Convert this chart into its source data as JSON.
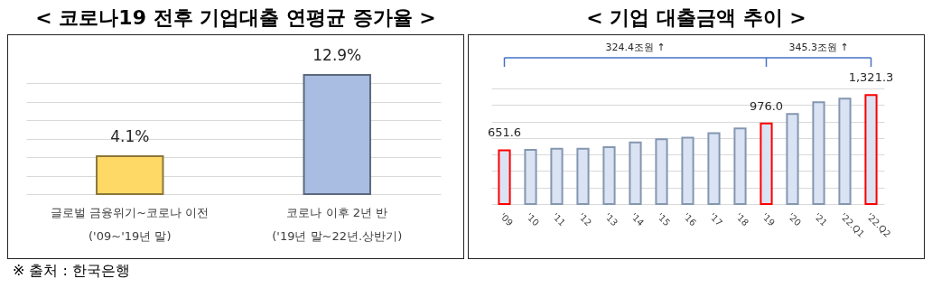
{
  "chart_data": [
    {
      "type": "bar",
      "title": "< 코로나19 전후 기업대출 연평균 증가율 >",
      "categories": [
        "글로벌 금융위기~코로나 이전\n('09~'19년 말)",
        "코로나 이후 2년 반\n('19년 말~22년.상반기)"
      ],
      "values": [
        4.1,
        12.9
      ],
      "colors": [
        "#ffd966",
        "#a9bde3"
      ],
      "value_labels": [
        "4.1%",
        "12.9%"
      ],
      "grid": "y",
      "tick_labels": "x",
      "annotations": [
        "※ 출처 : 한국은행"
      ]
    },
    {
      "type": "bar",
      "title": "< 기업 대출금액 추이 >",
      "categories": [
        "'09",
        "'10",
        "'11",
        "'12",
        "'13",
        "'14",
        "'15",
        "'16",
        "'17",
        "'18",
        "'19",
        "'20",
        "'21",
        "'22.Q1",
        "'22.Q2"
      ],
      "values": [
        651.6,
        655,
        670,
        670,
        689,
        746,
        784,
        805,
        859,
        916,
        976.0,
        1092,
        1232,
        1276,
        1321.3
      ],
      "colors": [
        "#dae3f3",
        "#dae3f3",
        "#dae3f3",
        "#dae3f3",
        "#dae3f3",
        "#dae3f3",
        "#dae3f3",
        "#dae3f3",
        "#dae3f3",
        "#dae3f3",
        "#dae3f3",
        "#dae3f3",
        "#dae3f3",
        "#dae3f3",
        "#dae3f3"
      ],
      "value_labels": [
        "651.6",
        null,
        null,
        null,
        null,
        null,
        null,
        null,
        null,
        null,
        "976.0",
        null,
        null,
        null,
        "1,321.3"
      ],
      "grid": "y",
      "tick_labels": "x",
      "annotations": [
        "324.4조원 ↑",
        "345.3조원 ↑"
      ]
    }
  ]
}
